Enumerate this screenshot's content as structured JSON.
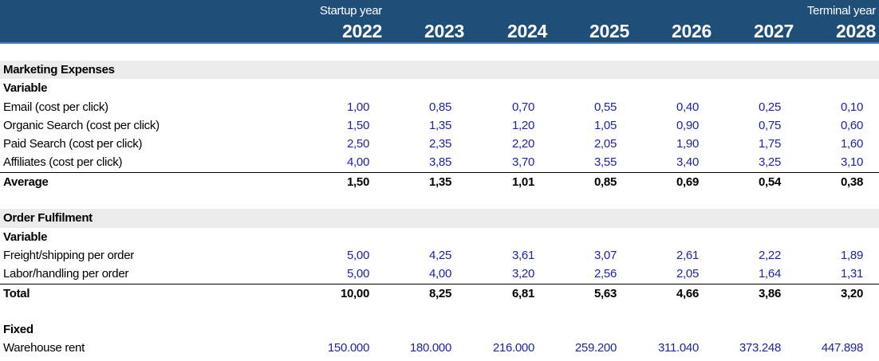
{
  "header": {
    "subs": [
      "Startup year",
      "",
      "",
      "",
      "",
      "",
      "Terminal year"
    ],
    "years": [
      "2022",
      "2023",
      "2024",
      "2025",
      "2026",
      "2027",
      "2028"
    ]
  },
  "rows": [
    {
      "type": "section",
      "label": "Marketing Expenses"
    },
    {
      "type": "sub",
      "label": "Variable"
    },
    {
      "type": "data",
      "label": "Email (cost per click)",
      "values": [
        "1,00",
        "0,85",
        "0,70",
        "0,55",
        "0,40",
        "0,25",
        "0,10"
      ]
    },
    {
      "type": "data",
      "label": "Organic Search (cost per click)",
      "values": [
        "1,50",
        "1,35",
        "1,20",
        "1,05",
        "0,90",
        "0,75",
        "0,60"
      ]
    },
    {
      "type": "data",
      "label": "Paid Search (cost per click)",
      "values": [
        "2,50",
        "2,35",
        "2,20",
        "2,05",
        "1,90",
        "1,75",
        "1,60"
      ]
    },
    {
      "type": "data",
      "label": "Affiliates (cost per click)",
      "values": [
        "4,00",
        "3,85",
        "3,70",
        "3,55",
        "3,40",
        "3,25",
        "3,10"
      ]
    },
    {
      "type": "total",
      "label": "Average",
      "values": [
        "1,50",
        "1,35",
        "1,01",
        "0,85",
        "0,69",
        "0,54",
        "0,38"
      ]
    },
    {
      "type": "blank",
      "label": ""
    },
    {
      "type": "section",
      "label": "Order Fulfilment"
    },
    {
      "type": "sub",
      "label": "Variable"
    },
    {
      "type": "data",
      "label": "Freight/shipping per order",
      "values": [
        "5,00",
        "4,25",
        "3,61",
        "3,07",
        "2,61",
        "2,22",
        "1,89"
      ]
    },
    {
      "type": "data",
      "label": "Labor/handling per order",
      "values": [
        "5,00",
        "4,00",
        "3,20",
        "2,56",
        "2,05",
        "1,64",
        "1,31"
      ]
    },
    {
      "type": "total",
      "label": "Total",
      "values": [
        "10,00",
        "8,25",
        "6,81",
        "5,63",
        "4,66",
        "3,86",
        "3,20"
      ]
    },
    {
      "type": "blank",
      "label": ""
    },
    {
      "type": "sub",
      "label": "Fixed"
    },
    {
      "type": "data",
      "label": "Warehouse rent",
      "values": [
        "150.000",
        "180.000",
        "216.000",
        "259.200",
        "311.040",
        "373.248",
        "447.898"
      ]
    }
  ]
}
